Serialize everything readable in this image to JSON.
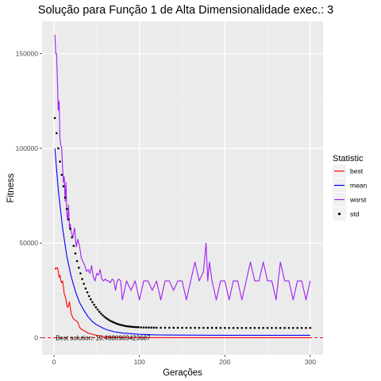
{
  "chart_data": {
    "type": "line",
    "title": "Solução para Função 1 de Alta Dimensionalidade exec.: 3",
    "xlabel": "Gerações",
    "ylabel": "Fitness",
    "xlim": [
      -14,
      315
    ],
    "ylim": [
      -9000,
      167000
    ],
    "x_ticks": [
      0,
      100,
      200,
      300
    ],
    "y_ticks": [
      0,
      50000,
      100000,
      150000
    ],
    "y_tick_labels": [
      "0",
      "50000",
      "100000",
      "150000"
    ],
    "grid": true,
    "legend": {
      "title": "Statistic",
      "placement": "right",
      "entries": [
        {
          "label": "best",
          "color": "#ff0000",
          "kind": "line"
        },
        {
          "label": "mean",
          "color": "#0000ff",
          "kind": "line"
        },
        {
          "label": "worst",
          "color": "#a020f0",
          "kind": "line"
        },
        {
          "label": "std",
          "color": "#000000",
          "kind": "point"
        }
      ]
    },
    "annotation": {
      "text": "Best solution: 19.4680983423687",
      "x": 2,
      "y": 0
    },
    "reference_line": {
      "y": 19.4680983423687,
      "color": "#ff0000",
      "style": "dashed"
    },
    "series": [
      {
        "name": "best",
        "color": "#ff0000",
        "x": [
          1,
          2,
          3,
          4,
          5,
          6,
          7,
          8,
          9,
          10,
          11,
          12,
          13,
          14,
          15,
          16,
          17,
          18,
          19,
          20,
          22,
          24,
          26,
          28,
          30,
          32,
          34,
          36,
          38,
          40,
          45,
          50,
          55,
          60,
          70,
          80,
          90,
          100,
          120,
          150,
          200,
          250,
          300
        ],
        "values": [
          36000,
          37000,
          36500,
          37000,
          35000,
          32000,
          33000,
          30000,
          29000,
          30000,
          27000,
          23000,
          22000,
          20000,
          17000,
          16000,
          17000,
          19000,
          16000,
          13000,
          10500,
          9500,
          9000,
          8000,
          5500,
          4500,
          4000,
          3500,
          3000,
          2500,
          1800,
          1300,
          900,
          600,
          300,
          150,
          80,
          50,
          30,
          20,
          19.5,
          19.5,
          19.5
        ]
      },
      {
        "name": "mean",
        "color": "#0000ff",
        "x": [
          1,
          5,
          10,
          15,
          20,
          25,
          30,
          35,
          40,
          45,
          50,
          60,
          70,
          80,
          100,
          120,
          150,
          200,
          250,
          300
        ],
        "values": [
          100000,
          78000,
          58000,
          43000,
          32500,
          24500,
          18500,
          14500,
          11000,
          8500,
          6800,
          4500,
          3200,
          2500,
          1800,
          1500,
          1400,
          1300,
          1300,
          1300
        ]
      },
      {
        "name": "worst",
        "color": "#a020f0",
        "x": [
          1,
          2,
          3,
          4,
          5,
          6,
          7,
          8,
          9,
          10,
          11,
          12,
          13,
          14,
          15,
          16,
          17,
          18,
          19,
          20,
          22,
          24,
          26,
          28,
          30,
          32,
          34,
          36,
          38,
          40,
          42,
          44,
          46,
          48,
          50,
          52,
          54,
          56,
          58,
          60,
          62,
          64,
          66,
          68,
          70,
          72,
          74,
          76,
          78,
          80,
          85,
          90,
          95,
          100,
          105,
          110,
          115,
          120,
          125,
          130,
          135,
          140,
          145,
          150,
          155,
          160,
          165,
          170,
          175,
          178,
          180,
          182,
          185,
          190,
          195,
          200,
          205,
          210,
          215,
          220,
          225,
          230,
          235,
          240,
          245,
          250,
          255,
          260,
          265,
          270,
          275,
          280,
          285,
          290,
          295,
          300
        ],
        "values": [
          160000,
          150000,
          150000,
          135000,
          120000,
          125000,
          105000,
          102000,
          100000,
          90000,
          82000,
          85000,
          72000,
          82000,
          65000,
          62000,
          70000,
          58000,
          60000,
          56000,
          53000,
          58000,
          48000,
          52000,
          48000,
          42000,
          40000,
          38000,
          35000,
          36000,
          34000,
          38000,
          32000,
          30000,
          34000,
          33000,
          36000,
          31000,
          30000,
          31000,
          30000,
          30000,
          29000,
          31000,
          30000,
          25000,
          30000,
          31000,
          30000,
          20000,
          30000,
          25000,
          30000,
          20000,
          30000,
          30000,
          25000,
          30000,
          20000,
          30000,
          30000,
          25000,
          30000,
          30000,
          20000,
          30000,
          40000,
          30000,
          35000,
          50000,
          30000,
          40000,
          30000,
          20000,
          30000,
          30000,
          20000,
          30000,
          30000,
          20000,
          30000,
          40000,
          30000,
          30000,
          40000,
          30000,
          30000,
          20000,
          40000,
          30000,
          30000,
          20000,
          30000,
          30000,
          20000,
          30000
        ]
      },
      {
        "name": "std",
        "color": "#000000",
        "marker": "point",
        "x": [
          1,
          3,
          5,
          7,
          9,
          11,
          13,
          15,
          17,
          19,
          21,
          23,
          25,
          27,
          29,
          31,
          33,
          35,
          37,
          39,
          41,
          43,
          45,
          47,
          49,
          51,
          53,
          55,
          57,
          59,
          61,
          63,
          65,
          67,
          69,
          71,
          73,
          75,
          77,
          79,
          81,
          83,
          85,
          87,
          89,
          91,
          93,
          95,
          97,
          99,
          102,
          105,
          108,
          111,
          114,
          117,
          120,
          125,
          130,
          135,
          140,
          145,
          150,
          155,
          160,
          165,
          170,
          175,
          180,
          185,
          190,
          195,
          200,
          205,
          210,
          215,
          220,
          225,
          230,
          235,
          240,
          245,
          250,
          255,
          260,
          265,
          270,
          275,
          280,
          285,
          290,
          295,
          300
        ],
        "values": [
          116000,
          108000,
          100000,
          93000,
          86000,
          80000,
          74000,
          68000,
          62500,
          57500,
          53000,
          48500,
          44500,
          40500,
          37000,
          34000,
          31000,
          28500,
          26000,
          24000,
          22000,
          20300,
          18800,
          17400,
          16100,
          14900,
          13800,
          12800,
          11900,
          11100,
          10400,
          9800,
          9200,
          8700,
          8300,
          7900,
          7500,
          7200,
          6900,
          6700,
          6500,
          6300,
          6100,
          6000,
          5900,
          5800,
          5700,
          5650,
          5600,
          5550,
          5500,
          5450,
          5400,
          5380,
          5360,
          5340,
          5320,
          5300,
          5290,
          5280,
          5270,
          5260,
          5250,
          5250,
          5240,
          5240,
          5230,
          5230,
          5220,
          5220,
          5210,
          5210,
          5200,
          5200,
          5200,
          5200,
          5200,
          5200,
          5200,
          5200,
          5200,
          5200,
          5200,
          5200,
          5200,
          5200,
          5200,
          5200,
          5200,
          5200,
          5200,
          5200,
          5200
        ]
      }
    ]
  }
}
